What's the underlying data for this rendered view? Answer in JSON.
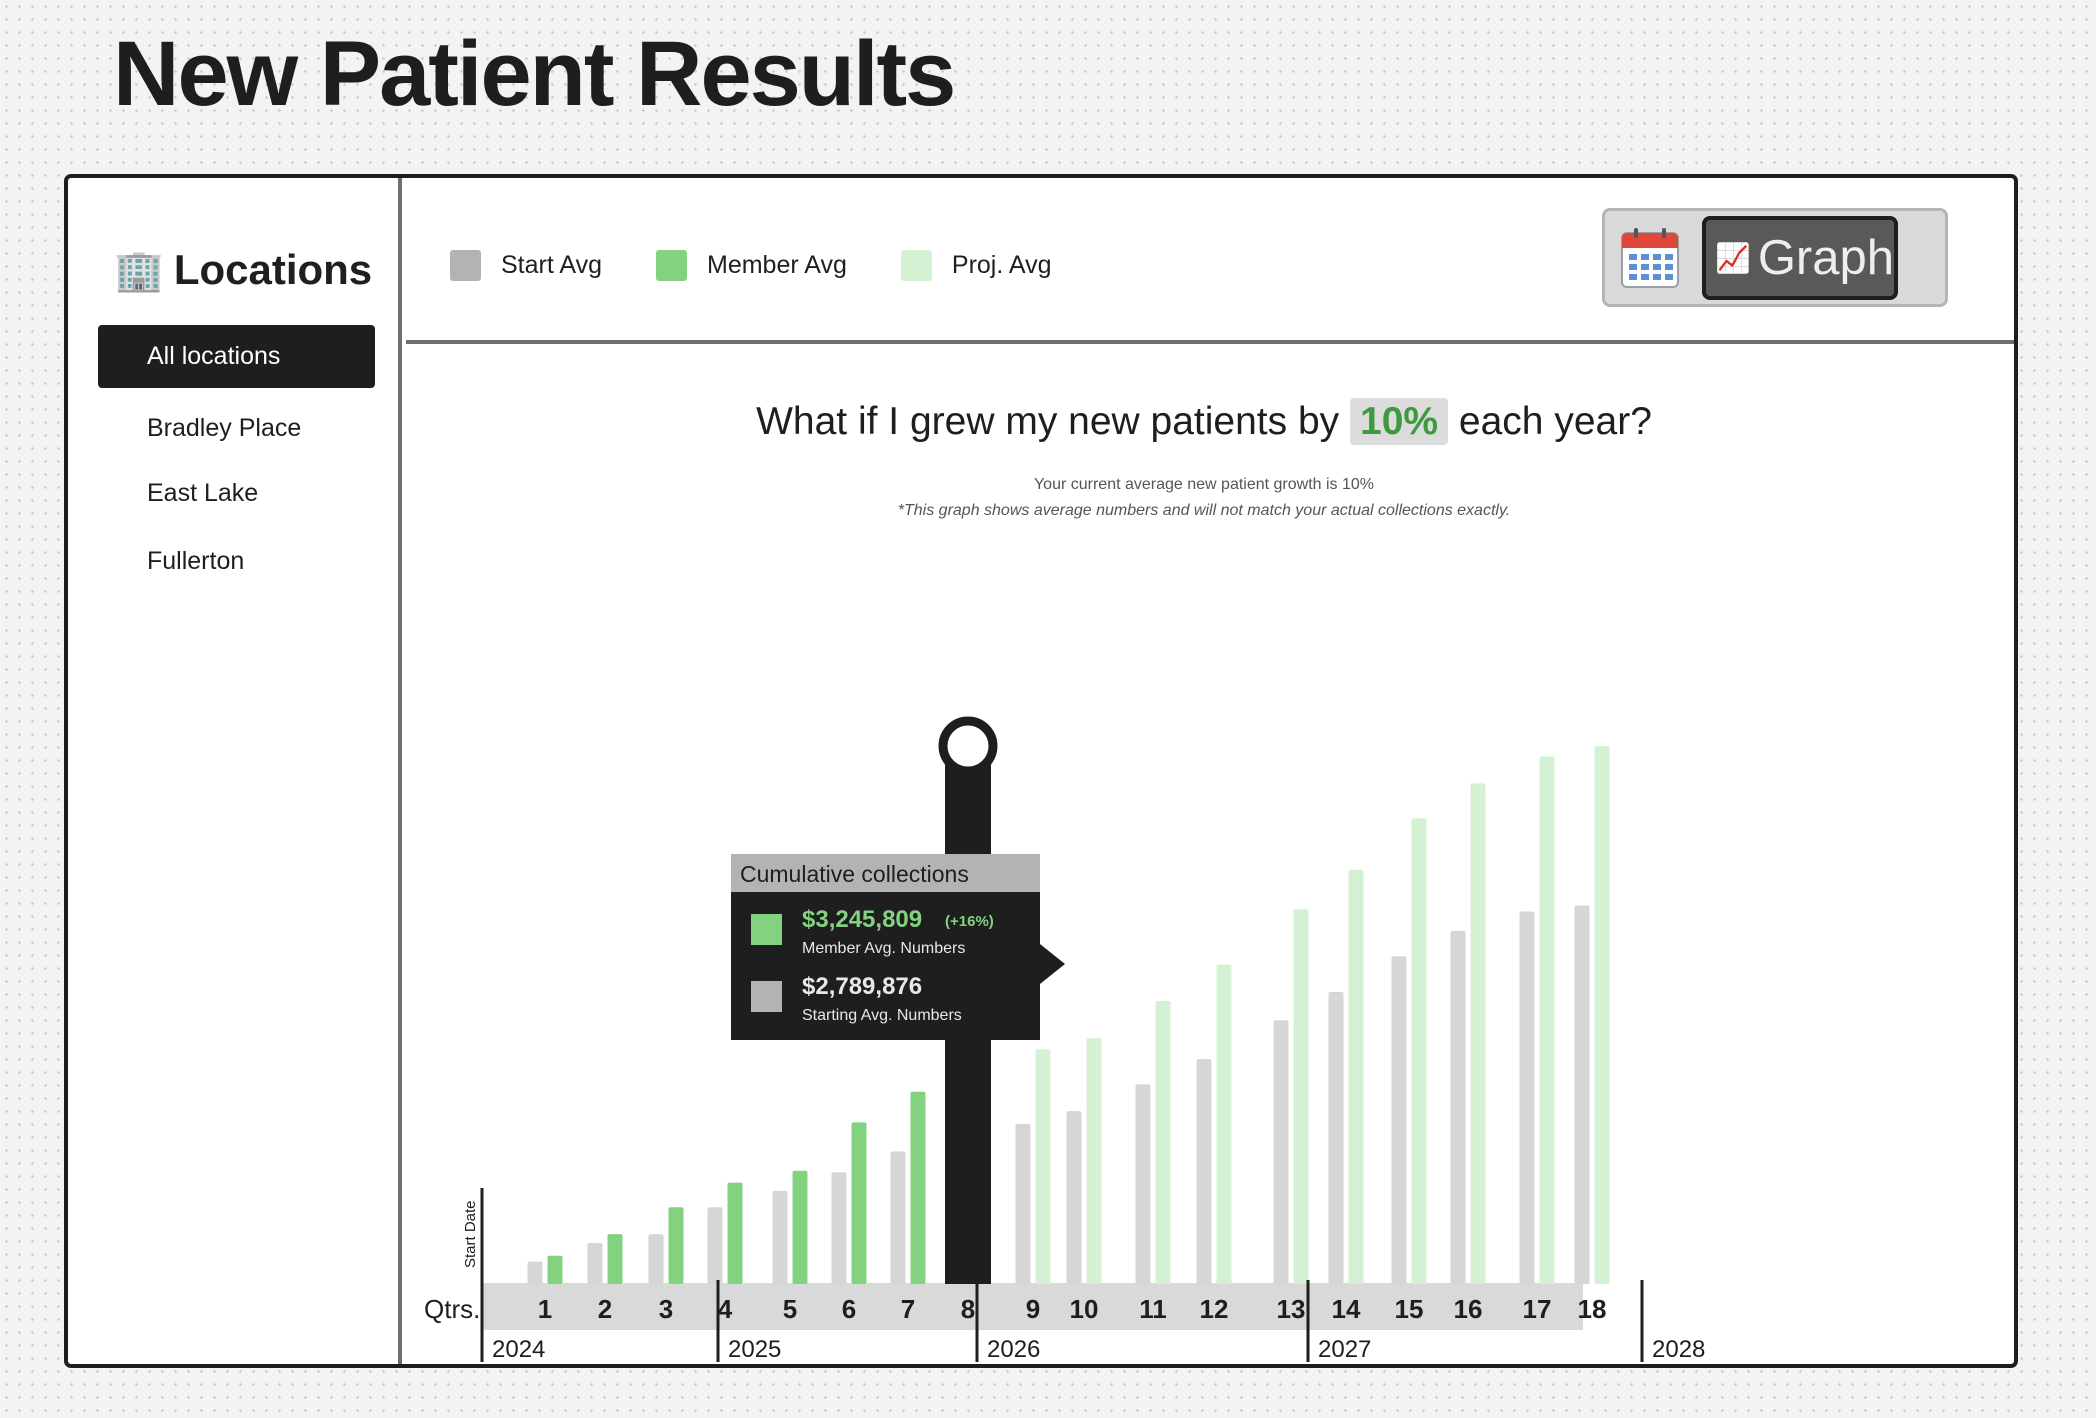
{
  "page": {
    "title": "New Patient Results"
  },
  "sidebar": {
    "icon": "office-building-icon",
    "title": "Locations",
    "items": [
      {
        "label": "All locations",
        "active": true
      },
      {
        "label": "Bradley Place",
        "active": false
      },
      {
        "label": "East Lake",
        "active": false
      },
      {
        "label": "Fullerton",
        "active": false
      }
    ]
  },
  "legend": {
    "start": "Start Avg",
    "member": "Member Avg",
    "proj": "Proj. Avg"
  },
  "colors": {
    "start": "#b3b3b3",
    "member": "#83d27f",
    "proj": "#d4f2d3",
    "accent_green": "#3e9a3e"
  },
  "view_toggle": {
    "calendar_icon": "calendar-icon",
    "graph_icon": "chart-increasing-icon",
    "graph_label": "Graph"
  },
  "heading": {
    "prefix": "What if I grew my new patients by",
    "percent": "10%",
    "suffix": "each year?"
  },
  "subtext": {
    "line1": "Your current average new patient growth is 10%",
    "line2": "*This graph shows average numbers and will not match your actual collections exactly."
  },
  "tooltip": {
    "title": "Cumulative collections",
    "member_value": "$3,245,809",
    "member_change": "(+16%)",
    "member_label": "Member Avg. Numbers",
    "start_value": "$2,789,876",
    "start_label": "Starting Avg. Numbers"
  },
  "chart_data": {
    "type": "bar",
    "xlabel": "Qtrs.",
    "ylabel": "Start Date",
    "current_quarter": 8,
    "categories": [
      1,
      2,
      3,
      4,
      5,
      6,
      7,
      8,
      9,
      10,
      11,
      12,
      13,
      14,
      15,
      16,
      17,
      18
    ],
    "years": [
      {
        "label": "2024",
        "quarters": [
          1,
          4
        ]
      },
      {
        "label": "2025",
        "quarters": [
          5,
          8
        ]
      },
      {
        "label": "2026",
        "quarters": [
          9,
          12
        ]
      },
      {
        "label": "2027",
        "quarters": [
          13,
          16
        ]
      },
      {
        "label": "2028",
        "quarters": [
          17,
          18
        ]
      }
    ],
    "series": [
      {
        "name": "Start Avg",
        "values": [
          30,
          55,
          67,
          103,
          125,
          150,
          178,
          null,
          215,
          232,
          268,
          302,
          354,
          392,
          440,
          474,
          500,
          508
        ]
      },
      {
        "name": "Member Avg",
        "values": [
          38,
          67,
          103,
          136,
          152,
          217,
          258,
          null,
          null,
          null,
          null,
          null,
          null,
          null,
          null,
          null,
          null,
          null
        ]
      },
      {
        "name": "Proj. Avg",
        "values": [
          null,
          null,
          null,
          null,
          null,
          null,
          null,
          null,
          315,
          330,
          380,
          429,
          503,
          556,
          625,
          672,
          708,
          722
        ]
      }
    ]
  }
}
